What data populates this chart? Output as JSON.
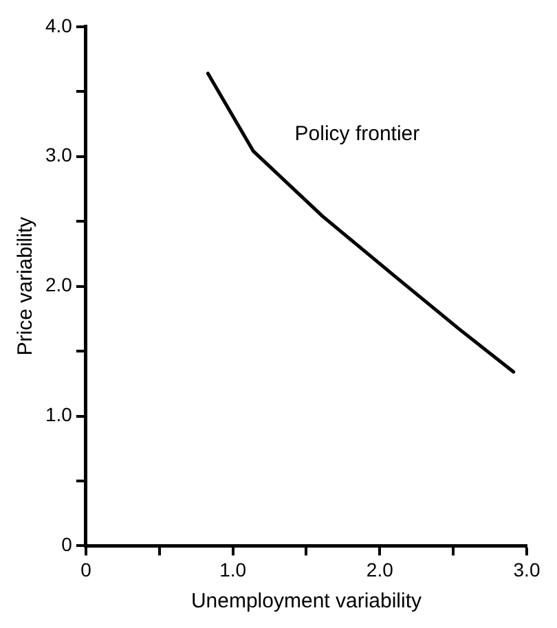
{
  "chart_data": {
    "type": "line",
    "xlabel": "Unemployment variability",
    "ylabel": "Price variability",
    "x": [
      0.83,
      1.14,
      1.61,
      2.11,
      2.54,
      2.91
    ],
    "series": [
      {
        "name": "Policy frontier",
        "color": "#000000",
        "values": [
          3.64,
          3.04,
          2.54,
          2.07,
          1.67,
          1.34
        ]
      }
    ],
    "xlim": [
      0,
      3
    ],
    "ylim": [
      0,
      4
    ],
    "xticks": [
      0,
      {
        "value": 0.5,
        "label": null
      },
      {
        "value": 1,
        "label": "1.0"
      },
      {
        "value": 1.5,
        "label": null
      },
      {
        "value": 2,
        "label": "2.0"
      },
      {
        "value": 2.5,
        "label": null
      },
      {
        "value": 3,
        "label": "3.0"
      }
    ],
    "yticks": [
      0,
      {
        "value": 0.5,
        "label": null
      },
      {
        "value": 1,
        "label": "1.0"
      },
      {
        "value": 1.5,
        "label": null
      },
      {
        "value": 2,
        "label": "2.0"
      },
      {
        "value": 2.5,
        "label": null
      },
      {
        "value": 3,
        "label": "3.0"
      },
      {
        "value": 3.5,
        "label": null
      },
      {
        "value": 4,
        "label": "4.0"
      }
    ],
    "grid": false,
    "legend": false,
    "marker": "none",
    "line_style": "solid"
  }
}
